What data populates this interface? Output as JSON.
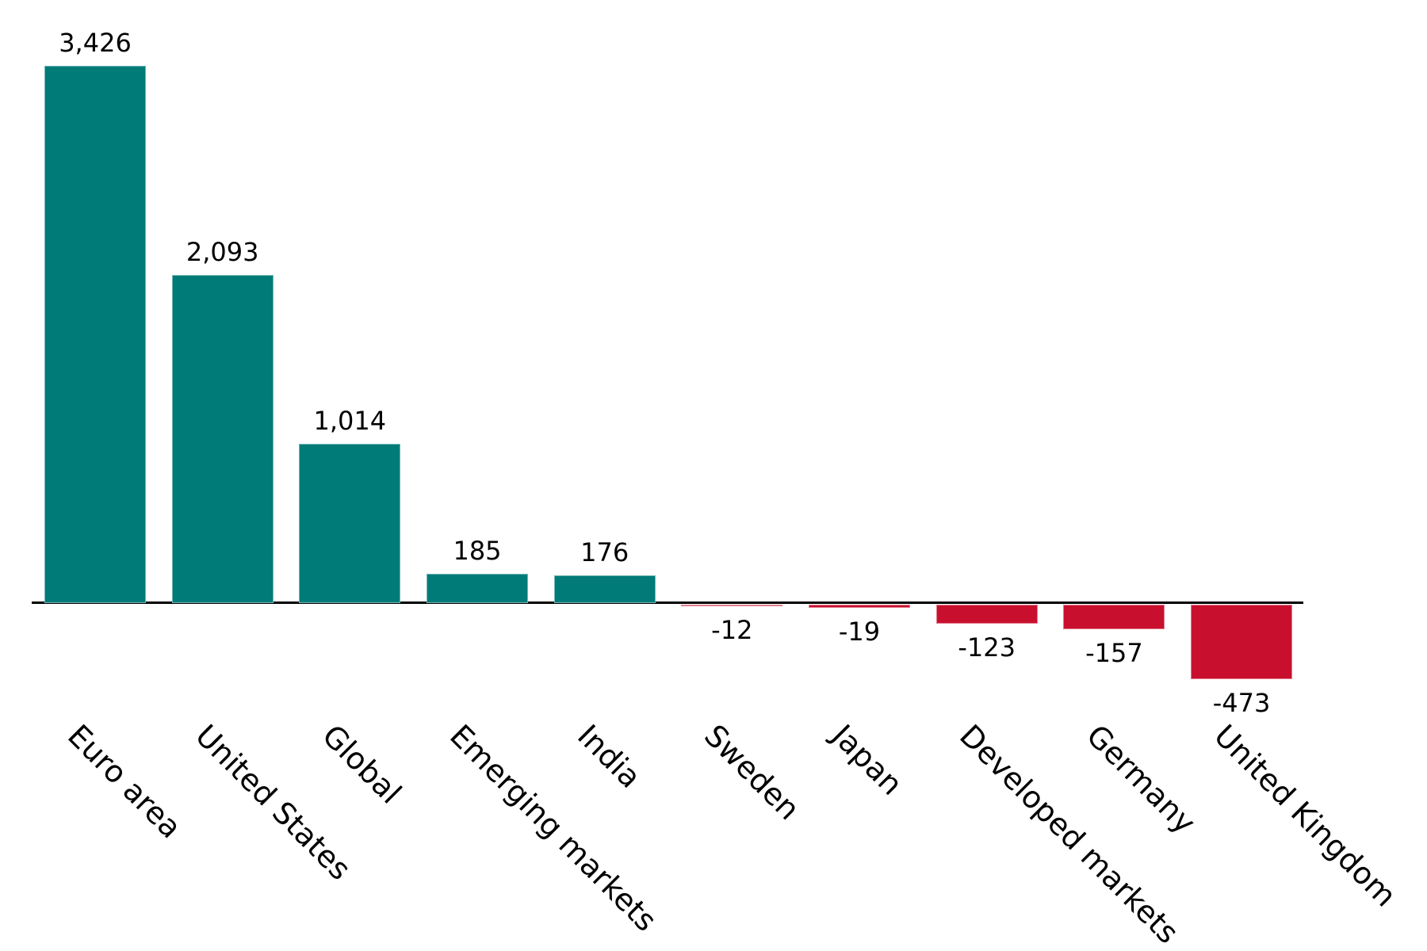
{
  "chart_data": {
    "type": "bar",
    "categories": [
      "Euro area",
      "United States",
      "Global",
      "Emerging markets",
      "India",
      "Sweden",
      "Japan",
      "Developed markets",
      "Germany",
      "United Kingdom"
    ],
    "values": [
      3426,
      2093,
      1014,
      185,
      176,
      -12,
      -19,
      -123,
      -157,
      -473
    ],
    "value_labels": [
      "3,426",
      "2,093",
      "1,014",
      "185",
      "176",
      "-12",
      "-19",
      "-123",
      "-157",
      "-473"
    ],
    "title": "",
    "xlabel": "",
    "ylabel": "",
    "ylim": [
      -600,
      3600
    ],
    "grid": false,
    "legend": null,
    "label_rotation_deg": 45,
    "colors": {
      "positive_bar": "#007B78",
      "negative_bar": "#C8102E",
      "axis": "#000000",
      "text": "#000000",
      "background": "#FFFFFF"
    }
  }
}
